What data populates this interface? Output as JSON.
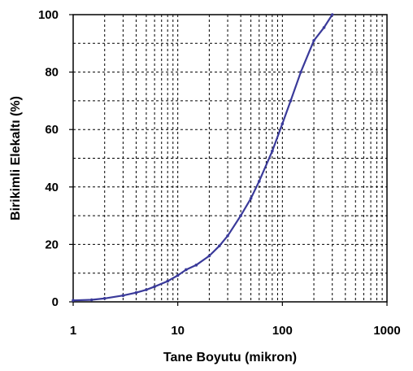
{
  "chart_data": {
    "type": "line",
    "title": "",
    "xlabel": "Tane Boyutu (mikron)",
    "ylabel": "Birikimli Elekaltı (%)",
    "xscale": "log",
    "xlim": [
      1,
      1000
    ],
    "ylim": [
      0,
      100
    ],
    "x_ticks": [
      "1",
      "10",
      "100",
      "1000"
    ],
    "y_ticks": [
      "0",
      "20",
      "40",
      "60",
      "80",
      "100"
    ],
    "grid": true,
    "legend": "none",
    "series": [
      {
        "color": "#3a3a9a",
        "x": [
          1,
          1.5,
          2,
          3,
          4,
          5,
          6,
          8,
          10,
          12,
          15,
          20,
          25,
          30,
          40,
          50,
          60,
          80,
          100,
          120,
          150,
          200,
          250,
          300
        ],
        "y": [
          0.5,
          0.7,
          1.2,
          2.2,
          3.2,
          4.2,
          5.3,
          7.2,
          9.2,
          11.2,
          12.8,
          16,
          19.5,
          23,
          30,
          36,
          42,
          52.5,
          62,
          70,
          80,
          91,
          95.5,
          100
        ]
      }
    ]
  }
}
